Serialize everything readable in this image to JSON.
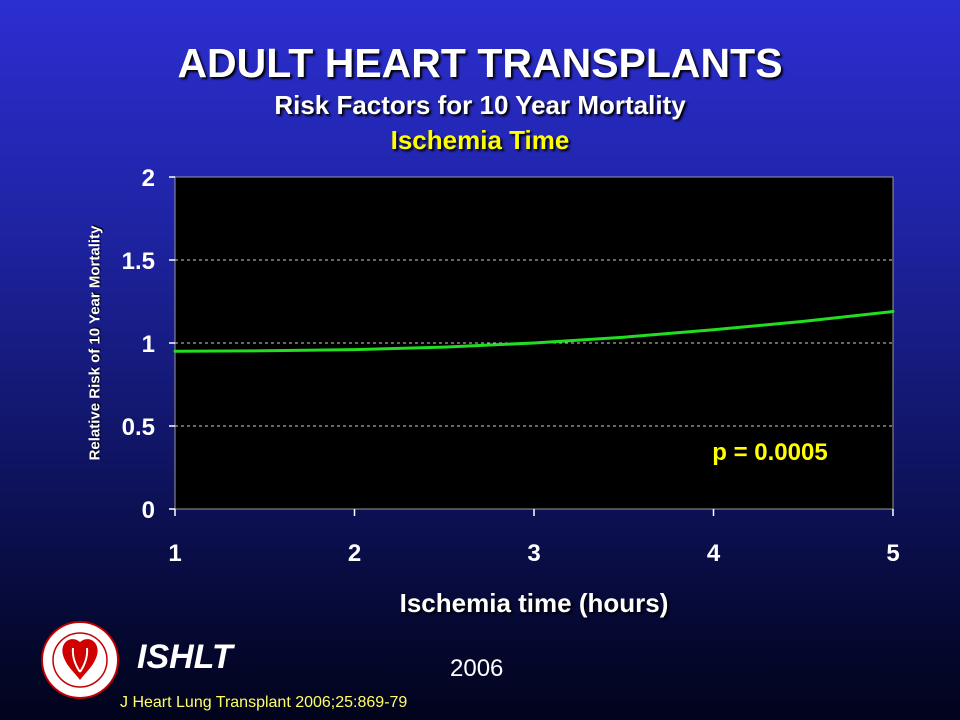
{
  "header": {
    "title": "ADULT HEART TRANSPLANTS",
    "subtitle": "Risk Factors for 10 Year Mortality",
    "subtitle2": "Ischemia Time"
  },
  "chart_data": {
    "type": "line",
    "xlabel": "Ischemia time (hours)",
    "ylabel": "Relative Risk of 10 Year Mortality",
    "xlim": [
      1,
      5
    ],
    "ylim": [
      0,
      2
    ],
    "x_ticks": [
      "1",
      "2",
      "3",
      "4",
      "5"
    ],
    "y_ticks": [
      "0",
      "0.5",
      "1",
      "1.5",
      "2"
    ],
    "x_tick_values": [
      1,
      2,
      3,
      4,
      5
    ],
    "y_tick_values": [
      0,
      0.5,
      1,
      1.5,
      2
    ],
    "grid": "horizontal dashed",
    "series": [
      {
        "color": "#22dd22",
        "x": [
          1,
          1.5,
          2,
          2.5,
          3,
          3.5,
          4,
          4.5,
          5
        ],
        "y": [
          0.95,
          0.953,
          0.96,
          0.975,
          1.0,
          1.035,
          1.08,
          1.13,
          1.19
        ]
      }
    ],
    "annotation": "p = 0.0005",
    "colors": {
      "plot_bg": "#000000",
      "annotation": "#ffff00",
      "grid": "#cfcfcf"
    }
  },
  "footer": {
    "org": "ISHLT",
    "year": "2006",
    "citation": "J Heart Lung Transplant 2006;25:869-79",
    "logo_icon": "ishlt-logo-icon"
  }
}
